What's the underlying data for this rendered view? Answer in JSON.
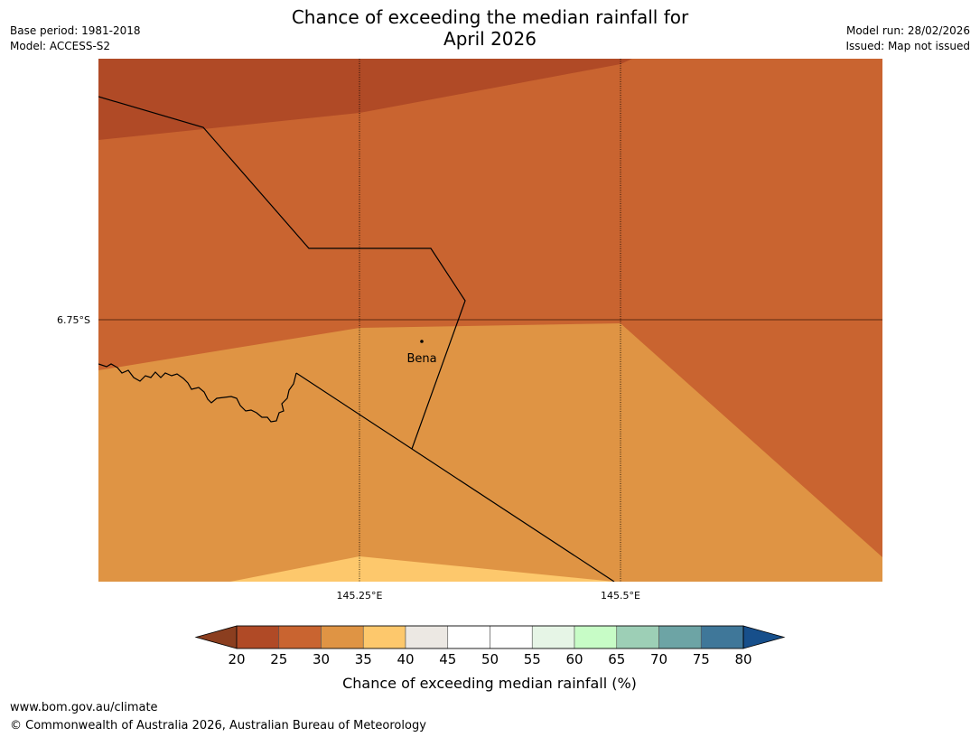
{
  "title_line1": "Chance of exceeding the median rainfall for",
  "title_line2": "April 2026",
  "base_period": "Base period: 1981-2018",
  "model": "Model: ACCESS-S2",
  "model_run": "Model run: 28/02/2026",
  "issued": "Issued: Map not issued",
  "map": {
    "lat_label": "6.75°S",
    "lon_labels": [
      "145.25°E",
      "145.5°E"
    ],
    "town": "Bena"
  },
  "legend": {
    "ticks": [
      "20",
      "25",
      "30",
      "35",
      "40",
      "45",
      "50",
      "55",
      "60",
      "65",
      "70",
      "75",
      "80"
    ],
    "colors": [
      "#8b3e1f",
      "#b04a26",
      "#c96430",
      "#df9444",
      "#fdc86c",
      "#ece8e3",
      "#ffffff",
      "#ffffff",
      "#e6f5e6",
      "#c7fcc6",
      "#9dcfb6",
      "#6da4a5",
      "#3f7799",
      "#174f8b"
    ],
    "label": "Chance of exceeding median rainfall (%)"
  },
  "footer_url": "www.bom.gov.au/climate",
  "copyright": "© Commonwealth of Australia 2026, Australian Bureau of Meteorology"
}
